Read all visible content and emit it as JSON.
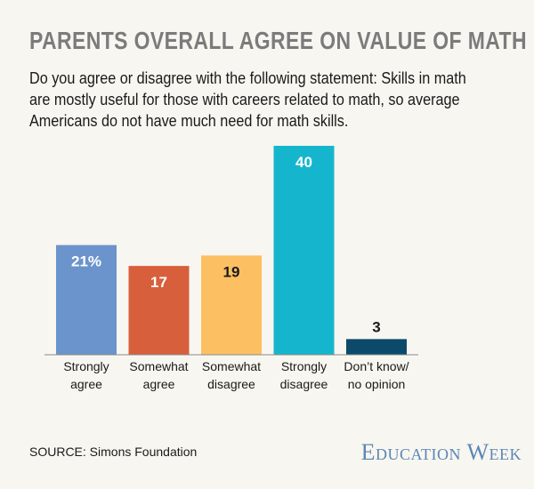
{
  "header": {
    "title": "PARENTS OVERALL AGREE ON VALUE OF MATH",
    "subtitle": "Do you agree or disagree with the following statement: Skills in math are mostly useful for those with careers related to math, so average Americans do not have much need for math skills."
  },
  "footer": {
    "source": "SOURCE: Simons Foundation",
    "brand": "Education Week"
  },
  "chart_data": {
    "type": "bar",
    "title": "PARENTS OVERALL AGREE ON VALUE OF MATH",
    "categories": [
      [
        "Strongly",
        "agree"
      ],
      [
        "Somewhat",
        "agree"
      ],
      [
        "Somewhat",
        "disagree"
      ],
      [
        "Strongly",
        "disagree"
      ],
      [
        "Don’t know/",
        "no opinion"
      ]
    ],
    "values": [
      21,
      17,
      19,
      40,
      3
    ],
    "value_labels": [
      "21%",
      "17",
      "19",
      "40",
      "3"
    ],
    "colors": [
      "#6a94cb",
      "#d85f3b",
      "#fcc062",
      "#15b6cd",
      "#0b4a6a"
    ],
    "label_inside": [
      true,
      true,
      true,
      true,
      false
    ],
    "label_colors": [
      "#ffffff",
      "#ffffff",
      "#1a1a1a",
      "#ffffff",
      "#1a1a1a"
    ],
    "ylim": [
      0,
      40
    ],
    "xlabel": "",
    "ylabel": "",
    "grid": false
  }
}
